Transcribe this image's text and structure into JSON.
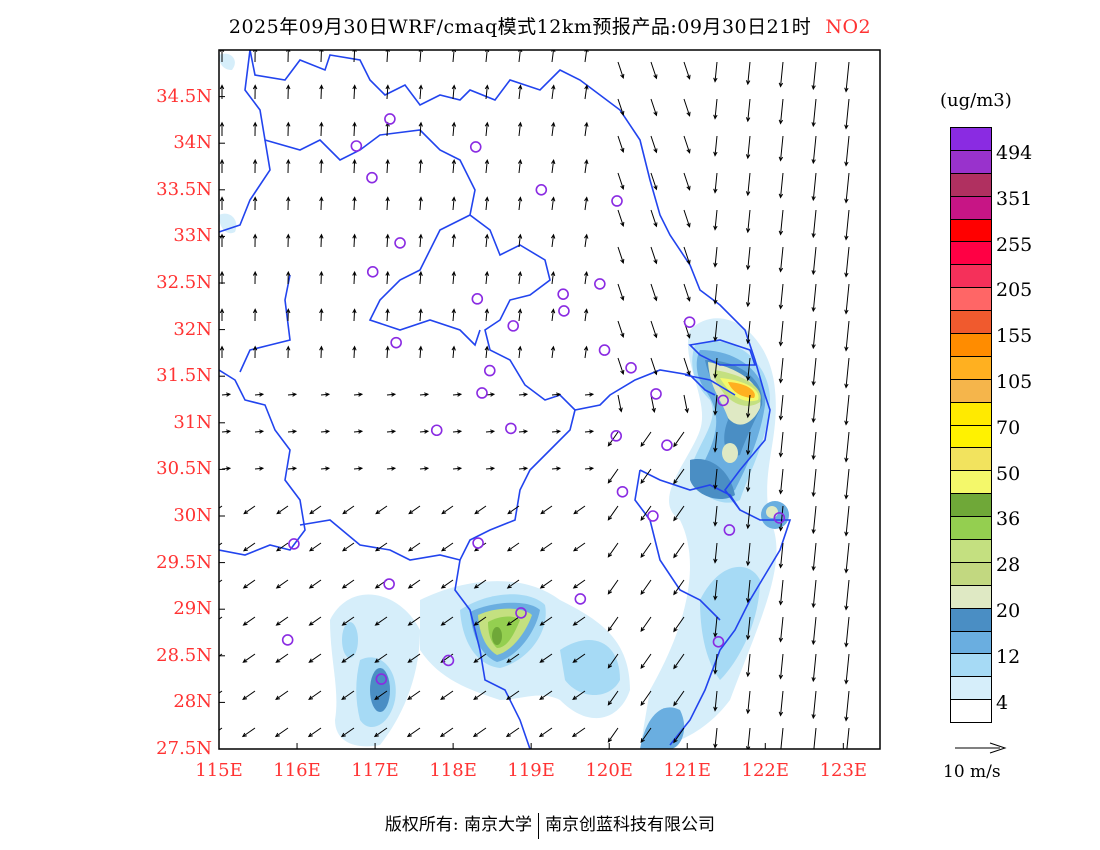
{
  "title": {
    "text": "2025年09月30日WRF/cmaq模式12km预报产品:09月30日21时",
    "species": "NO2"
  },
  "map": {
    "lon_range": [
      115,
      123.47
    ],
    "lat_range": [
      27.5,
      35.0
    ],
    "lat_ticks": [
      "34.5N",
      "34N",
      "33.5N",
      "33N",
      "32.5N",
      "32N",
      "31.5N",
      "31N",
      "30.5N",
      "30N",
      "29.5N",
      "29N",
      "28.5N",
      "28N",
      "27.5N"
    ],
    "lat_values": [
      34.5,
      34,
      33.5,
      33,
      32.5,
      32,
      31.5,
      31,
      30.5,
      30,
      29.5,
      29,
      28.5,
      28,
      27.5
    ],
    "lon_ticks": [
      "115E",
      "116E",
      "117E",
      "118E",
      "119E",
      "120E",
      "121E",
      "122E",
      "123E"
    ],
    "lon_values": [
      115,
      116,
      117,
      118,
      119,
      120,
      121,
      122,
      123
    ],
    "stations": [
      [
        117.19,
        34.26
      ],
      [
        116.76,
        33.97
      ],
      [
        118.29,
        33.96
      ],
      [
        116.96,
        33.63
      ],
      [
        119.13,
        33.5
      ],
      [
        120.1,
        33.38
      ],
      [
        117.32,
        32.93
      ],
      [
        116.97,
        32.62
      ],
      [
        119.88,
        32.49
      ],
      [
        118.31,
        32.33
      ],
      [
        119.41,
        32.38
      ],
      [
        119.42,
        32.2
      ],
      [
        118.77,
        32.04
      ],
      [
        121.03,
        32.08
      ],
      [
        117.27,
        31.86
      ],
      [
        119.94,
        31.78
      ],
      [
        120.28,
        31.59
      ],
      [
        118.47,
        31.56
      ],
      [
        118.37,
        31.32
      ],
      [
        121.46,
        31.24
      ],
      [
        120.6,
        31.31
      ],
      [
        117.79,
        30.92
      ],
      [
        118.74,
        30.94
      ],
      [
        120.09,
        30.86
      ],
      [
        120.74,
        30.76
      ],
      [
        120.17,
        30.26
      ],
      [
        120.56,
        30.0
      ],
      [
        121.54,
        29.85
      ],
      [
        122.18,
        29.98
      ],
      [
        115.96,
        29.7
      ],
      [
        118.32,
        29.71
      ],
      [
        117.18,
        29.27
      ],
      [
        119.63,
        29.11
      ],
      [
        118.87,
        28.96
      ],
      [
        115.88,
        28.67
      ],
      [
        121.4,
        28.65
      ],
      [
        117.94,
        28.45
      ],
      [
        117.08,
        28.25
      ]
    ]
  },
  "colorbar": {
    "unit": "(ug/m3)",
    "labels": [
      "494",
      "351",
      "255",
      "205",
      "155",
      "105",
      "70",
      "50",
      "36",
      "28",
      "20",
      "12",
      "4"
    ],
    "colors": [
      "#8a2be2",
      "#9932cc",
      "#b03060",
      "#c71585",
      "#ff0000",
      "#ff0044",
      "#f5305a",
      "#ff6666",
      "#f05a2e",
      "#ff8c00",
      "#ffb020",
      "#f5b54b",
      "#ffea00",
      "#fff200",
      "#f2e35e",
      "#f4f86a",
      "#6fa838",
      "#94cf50",
      "#c4e080",
      "#c2d880",
      "#dfe9c4",
      "#4a8ec4",
      "#6aaee0",
      "#a6daf5",
      "#d6eefa",
      "#ffffff"
    ]
  },
  "wind_reference": "10 m/s",
  "footer": {
    "left": "版权所有: 南京大学",
    "right": "南京创蓝科技有限公司"
  }
}
